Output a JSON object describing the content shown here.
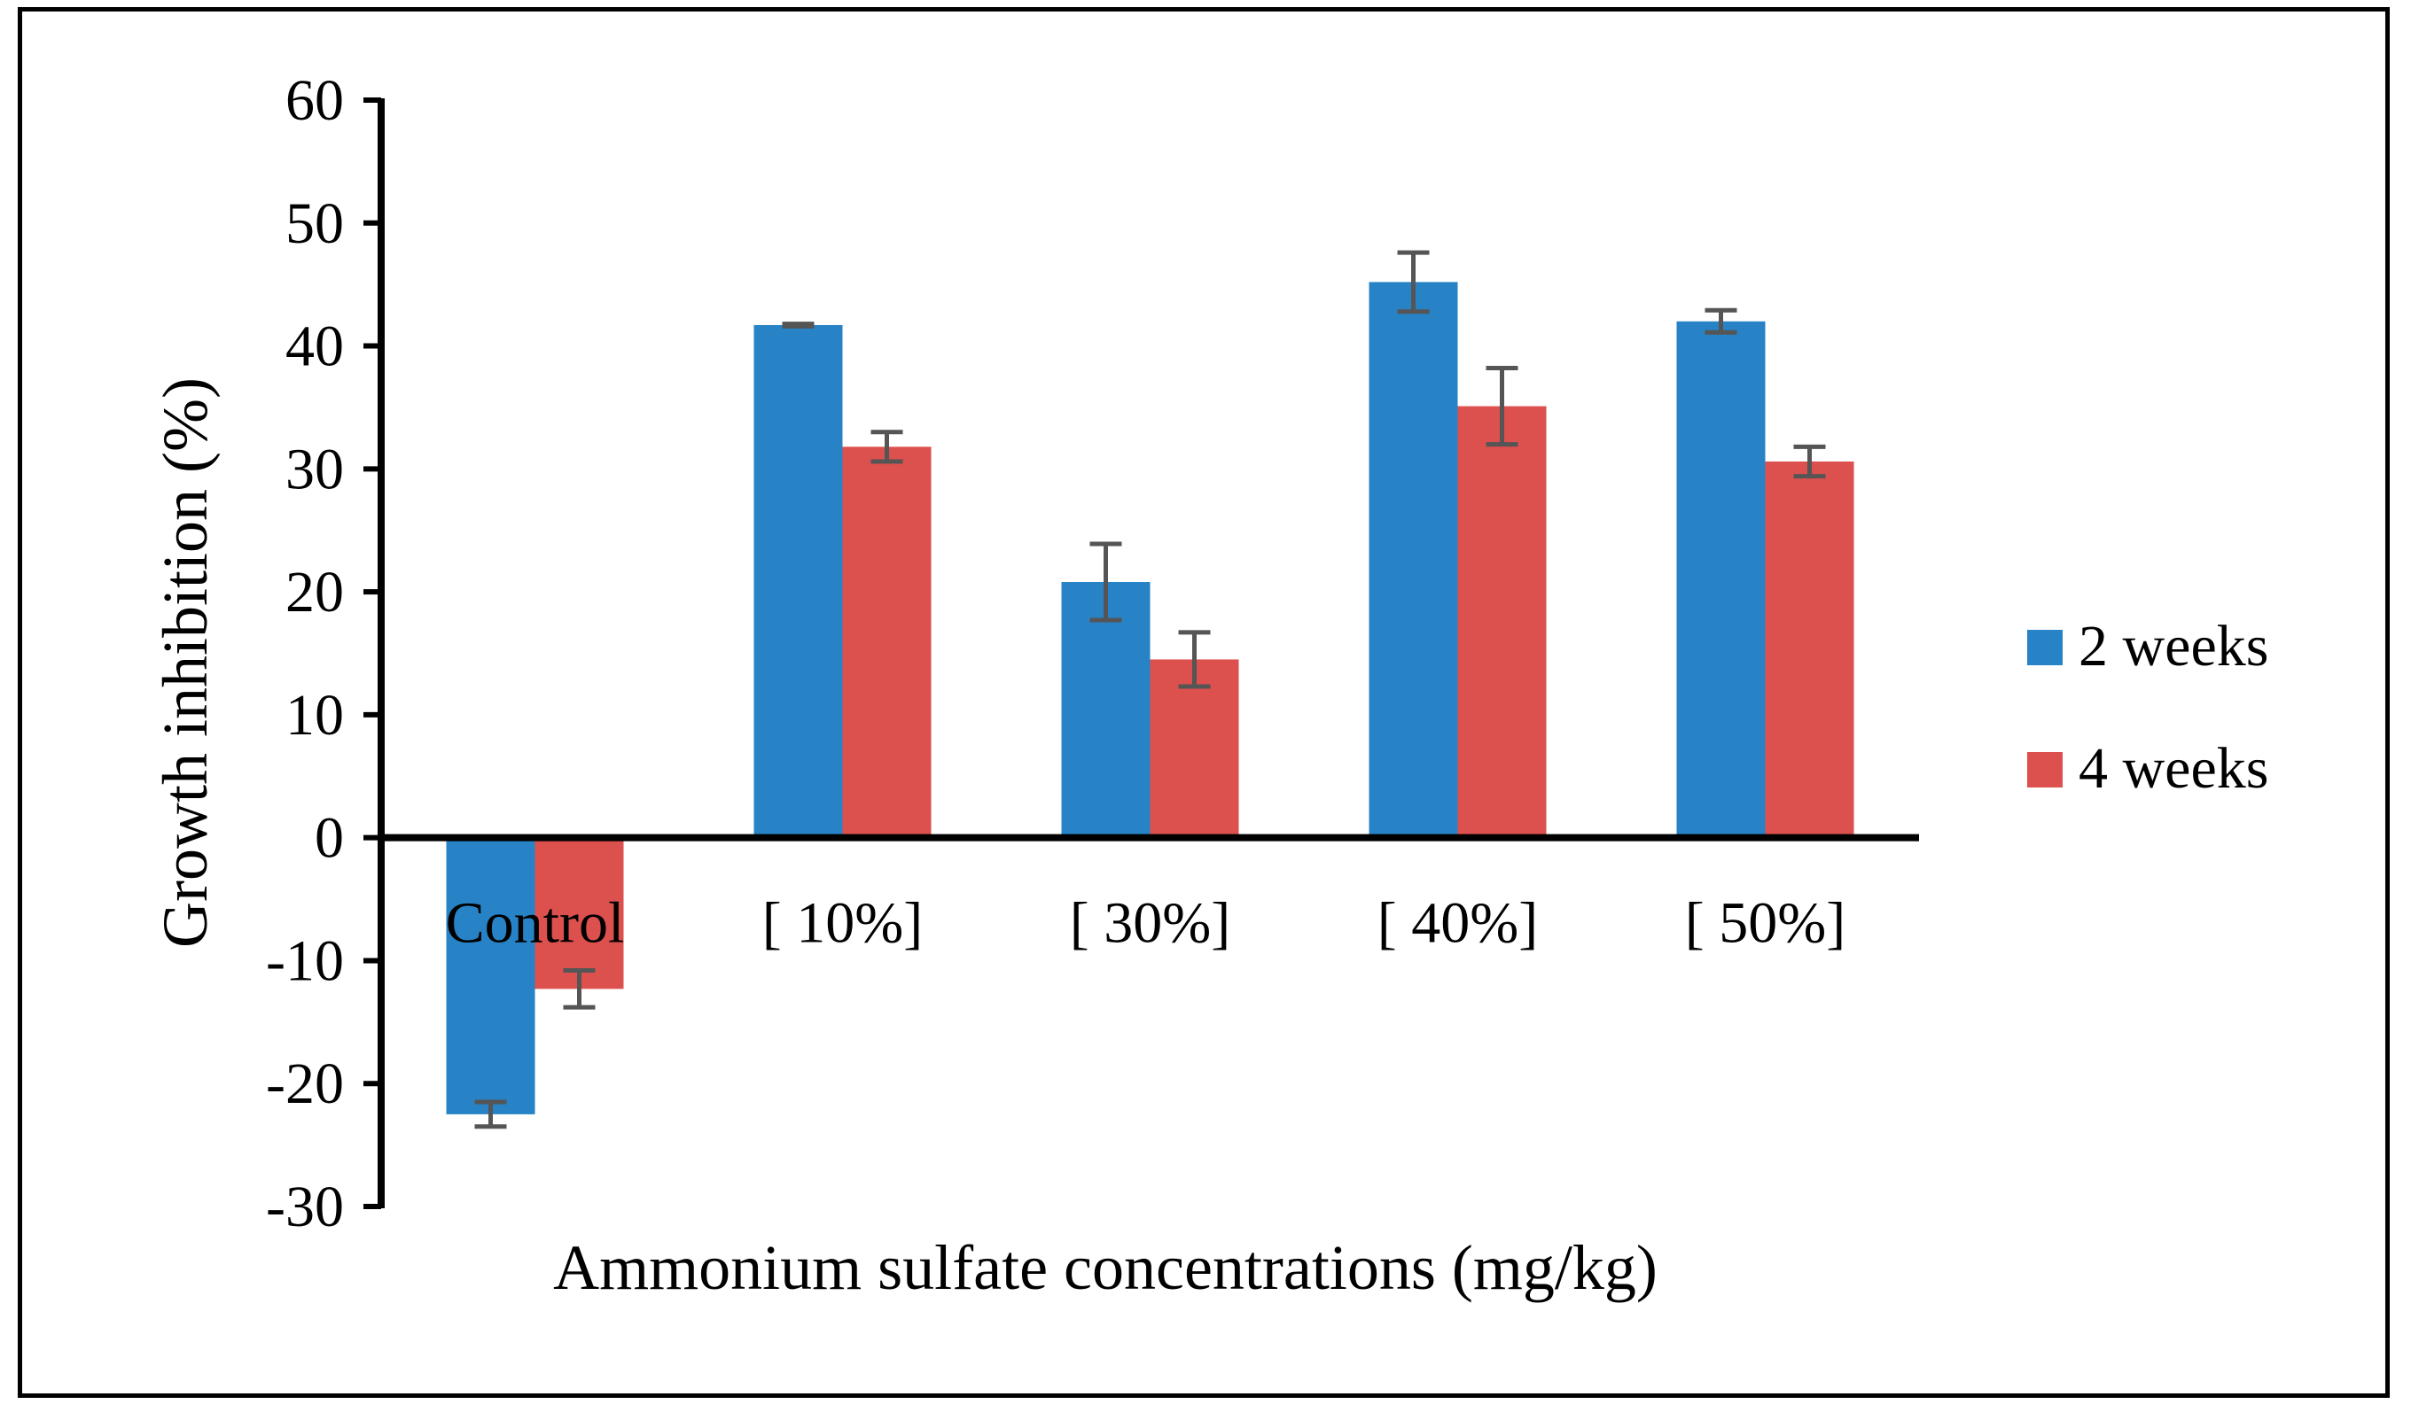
{
  "chart_data": {
    "type": "bar",
    "title": "",
    "xlabel": "Ammonium sulfate concentrations (mg/kg)",
    "ylabel": "Growth inhibition (%)",
    "ylim": [
      -30,
      60
    ],
    "yticks": [
      60,
      50,
      40,
      30,
      20,
      10,
      0,
      -10,
      -20,
      -30
    ],
    "grid": false,
    "legend_position": "right",
    "categories": [
      "Control",
      "[ 10%]",
      "[ 30%]",
      "[ 40%]",
      "[ 50%]"
    ],
    "series": [
      {
        "name": "2 weeks",
        "color": "#2783c5",
        "values": [
          -22.5,
          41.7,
          20.8,
          45.2,
          42.0
        ],
        "errors": [
          1.0,
          0.1,
          3.1,
          2.4,
          0.9
        ]
      },
      {
        "name": "4 weeks",
        "color": "#dc504e",
        "values": [
          -12.3,
          31.8,
          14.5,
          35.1,
          30.6
        ],
        "errors": [
          1.5,
          1.2,
          2.2,
          3.1,
          1.2
        ]
      }
    ],
    "error_bar_color": "#555555"
  }
}
